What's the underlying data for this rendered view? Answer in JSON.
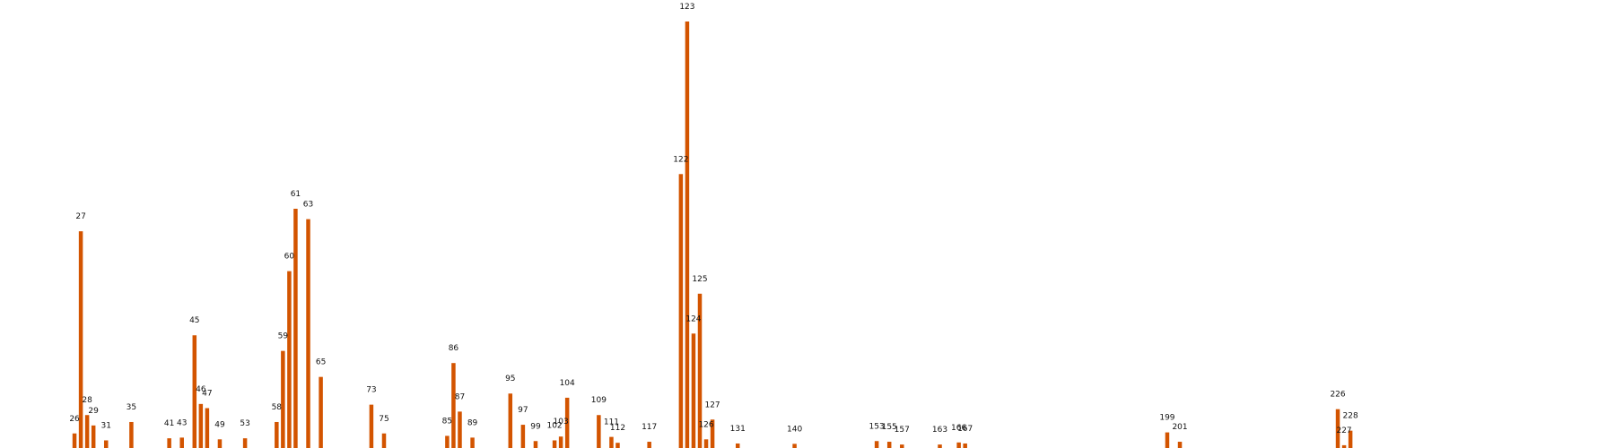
{
  "chart_data": {
    "type": "bar",
    "title": "",
    "xlabel": "",
    "ylabel": "",
    "x_range": [
      0,
      254
    ],
    "ylim": [
      0,
      123
    ],
    "grid": false,
    "color": "#d35400",
    "points": [
      {
        "x": 26,
        "y": 4.2
      },
      {
        "x": 27,
        "y": 62.5
      },
      {
        "x": 28,
        "y": 9.5
      },
      {
        "x": 29,
        "y": 6.5
      },
      {
        "x": 31,
        "y": 2.2
      },
      {
        "x": 35,
        "y": 7.5
      },
      {
        "x": 41,
        "y": 2.8
      },
      {
        "x": 43,
        "y": 3.0
      },
      {
        "x": 45,
        "y": 32.5
      },
      {
        "x": 46,
        "y": 12.7
      },
      {
        "x": 47,
        "y": 11.5
      },
      {
        "x": 49,
        "y": 2.5
      },
      {
        "x": 53,
        "y": 2.8
      },
      {
        "x": 58,
        "y": 7.5
      },
      {
        "x": 59,
        "y": 28.0
      },
      {
        "x": 60,
        "y": 51.0
      },
      {
        "x": 61,
        "y": 69.0
      },
      {
        "x": 63,
        "y": 66.0
      },
      {
        "x": 65,
        "y": 20.5
      },
      {
        "x": 73,
        "y": 12.5
      },
      {
        "x": 75,
        "y": 4.2
      },
      {
        "x": 85,
        "y": 3.5
      },
      {
        "x": 86,
        "y": 24.5
      },
      {
        "x": 87,
        "y": 10.5
      },
      {
        "x": 89,
        "y": 3.0
      },
      {
        "x": 95,
        "y": 15.7
      },
      {
        "x": 97,
        "y": 6.7
      },
      {
        "x": 99,
        "y": 2.0
      },
      {
        "x": 102,
        "y": 2.2
      },
      {
        "x": 103,
        "y": 3.3
      },
      {
        "x": 104,
        "y": 14.5
      },
      {
        "x": 109,
        "y": 9.5
      },
      {
        "x": 111,
        "y": 3.2
      },
      {
        "x": 112,
        "y": 1.5
      },
      {
        "x": 117,
        "y": 1.8
      },
      {
        "x": 122,
        "y": 79.0
      },
      {
        "x": 123,
        "y": 123.0
      },
      {
        "x": 124,
        "y": 33.0
      },
      {
        "x": 125,
        "y": 44.5
      },
      {
        "x": 126,
        "y": 2.5
      },
      {
        "x": 127,
        "y": 8.2
      },
      {
        "x": 131,
        "y": 1.3
      },
      {
        "x": 140,
        "y": 1.2
      },
      {
        "x": 153,
        "y": 2.0
      },
      {
        "x": 155,
        "y": 1.8
      },
      {
        "x": 157,
        "y": 1.0
      },
      {
        "x": 163,
        "y": 1.0
      },
      {
        "x": 166,
        "y": 1.6
      },
      {
        "x": 167,
        "y": 1.3
      },
      {
        "x": 199,
        "y": 4.5
      },
      {
        "x": 201,
        "y": 1.8
      },
      {
        "x": 226,
        "y": 11.2
      },
      {
        "x": 227,
        "y": 0.8
      },
      {
        "x": 228,
        "y": 5.0
      }
    ]
  }
}
